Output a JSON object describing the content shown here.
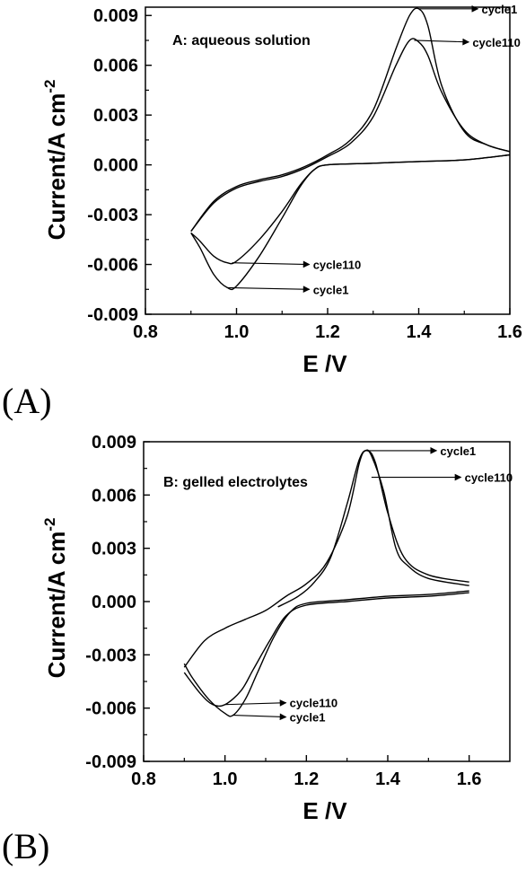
{
  "chart_data": [
    {
      "type": "line",
      "panel_label": "(A)",
      "annotation": "A:  aqueous solution",
      "xlabel": "E /V",
      "ylabel_main": "Current/A cm",
      "ylabel_sup": "-2",
      "xlim": [
        0.8,
        1.6
      ],
      "ylim": [
        -0.009,
        0.0095
      ],
      "xticks": [
        0.8,
        1.0,
        1.2,
        1.4,
        1.6
      ],
      "xtick_labels": [
        "0.8",
        "1.0",
        "1.2",
        "1.4",
        "1.6"
      ],
      "yticks": [
        -0.009,
        -0.006,
        -0.003,
        0.0,
        0.003,
        0.006,
        0.009
      ],
      "ytick_labels": [
        "-0.009",
        "-0.006",
        "-0.003",
        "0.000",
        "0.003",
        "0.006",
        "0.009"
      ],
      "series": [
        {
          "name": "cycle1",
          "forward": [
            [
              0.9,
              -0.004
            ],
            [
              0.95,
              -0.0022
            ],
            [
              1.0,
              -0.0013
            ],
            [
              1.05,
              -0.0009
            ],
            [
              1.1,
              -0.0006
            ],
            [
              1.15,
              -0.0001
            ],
            [
              1.2,
              0.0006
            ],
            [
              1.25,
              0.0015
            ],
            [
              1.3,
              0.0033
            ],
            [
              1.35,
              0.007
            ],
            [
              1.38,
              0.009
            ],
            [
              1.4,
              0.0094
            ],
            [
              1.42,
              0.0084
            ],
            [
              1.45,
              0.0048
            ],
            [
              1.5,
              0.002
            ],
            [
              1.55,
              0.0012
            ],
            [
              1.6,
              0.0008
            ]
          ],
          "reverse": [
            [
              1.6,
              0.0006
            ],
            [
              1.5,
              0.0003
            ],
            [
              1.4,
              0.0002
            ],
            [
              1.3,
              0.0001
            ],
            [
              1.2,
              0.0
            ],
            [
              1.17,
              -0.0003
            ],
            [
              1.14,
              -0.0013
            ],
            [
              1.1,
              -0.0032
            ],
            [
              1.05,
              -0.0055
            ],
            [
              1.0,
              -0.0073
            ],
            [
              0.98,
              -0.0074
            ],
            [
              0.95,
              -0.0066
            ],
            [
              0.92,
              -0.005
            ],
            [
              0.9,
              -0.0041
            ]
          ]
        },
        {
          "name": "cycle110",
          "forward": [
            [
              0.9,
              -0.004
            ],
            [
              0.95,
              -0.0023
            ],
            [
              1.0,
              -0.0014
            ],
            [
              1.05,
              -0.001
            ],
            [
              1.1,
              -0.0007
            ],
            [
              1.15,
              -0.0002
            ],
            [
              1.2,
              0.0005
            ],
            [
              1.25,
              0.0013
            ],
            [
              1.3,
              0.0029
            ],
            [
              1.35,
              0.006
            ],
            [
              1.38,
              0.0075
            ],
            [
              1.4,
              0.0074
            ],
            [
              1.42,
              0.0066
            ],
            [
              1.45,
              0.0044
            ],
            [
              1.5,
              0.0021
            ],
            [
              1.55,
              0.0012
            ],
            [
              1.6,
              0.0008
            ]
          ],
          "reverse": [
            [
              1.6,
              0.0006
            ],
            [
              1.5,
              0.0003
            ],
            [
              1.4,
              0.0002
            ],
            [
              1.3,
              0.0001
            ],
            [
              1.2,
              0.0
            ],
            [
              1.17,
              -0.0003
            ],
            [
              1.14,
              -0.0012
            ],
            [
              1.1,
              -0.0028
            ],
            [
              1.05,
              -0.0045
            ],
            [
              1.0,
              -0.0058
            ],
            [
              0.98,
              -0.0059
            ],
            [
              0.95,
              -0.0055
            ],
            [
              0.92,
              -0.0046
            ],
            [
              0.9,
              -0.0041
            ]
          ]
        }
      ],
      "labels": [
        {
          "text": "cycle1",
          "at": [
            1.4,
            0.0094
          ],
          "to": [
            1.53,
            0.0094
          ]
        },
        {
          "text": "cycle110",
          "at": [
            1.39,
            0.0075
          ],
          "to": [
            1.51,
            0.0074
          ]
        },
        {
          "text": "cycle110",
          "at": [
            0.99,
            -0.0059
          ],
          "to": [
            1.16,
            -0.006
          ]
        },
        {
          "text": "cycle1",
          "at": [
            0.98,
            -0.0074
          ],
          "to": [
            1.16,
            -0.0075
          ]
        }
      ]
    },
    {
      "type": "line",
      "panel_label": "(B)",
      "annotation": "B: gelled electrolytes",
      "xlabel": "E /V",
      "ylabel_main": "Current/A cm",
      "ylabel_sup": "-2",
      "xlim": [
        0.8,
        1.7
      ],
      "ylim": [
        -0.009,
        0.009
      ],
      "xticks": [
        0.8,
        1.0,
        1.2,
        1.4,
        1.6
      ],
      "xtick_labels": [
        "0.8",
        "1.0",
        "1.2",
        "1.4",
        "1.6"
      ],
      "yticks": [
        -0.009,
        -0.006,
        -0.003,
        0.0,
        0.003,
        0.006,
        0.009
      ],
      "ytick_labels": [
        "-0.009",
        "-0.006",
        "-0.003",
        "0.000",
        "0.003",
        "0.006",
        "0.009"
      ],
      "series": [
        {
          "name": "cycle1",
          "forward": [
            [
              1.13,
              -0.0003
            ],
            [
              1.18,
              0.0003
            ],
            [
              1.22,
              0.0011
            ],
            [
              1.26,
              0.0025
            ],
            [
              1.3,
              0.0055
            ],
            [
              1.33,
              0.008
            ],
            [
              1.35,
              0.0085
            ],
            [
              1.37,
              0.0078
            ],
            [
              1.4,
              0.005
            ],
            [
              1.44,
              0.0025
            ],
            [
              1.5,
              0.0015
            ],
            [
              1.6,
              0.0011
            ]
          ],
          "reverse": [
            [
              1.6,
              0.0006
            ],
            [
              1.5,
              0.0004
            ],
            [
              1.4,
              0.0003
            ],
            [
              1.3,
              0.0001
            ],
            [
              1.2,
              -0.0001
            ],
            [
              1.16,
              -0.0006
            ],
            [
              1.12,
              -0.002
            ],
            [
              1.08,
              -0.004
            ],
            [
              1.05,
              -0.0055
            ],
            [
              1.02,
              -0.0064
            ],
            [
              1.0,
              -0.0063
            ],
            [
              0.96,
              -0.0055
            ],
            [
              0.92,
              -0.0043
            ],
            [
              0.9,
              -0.0035
            ]
          ]
        },
        {
          "name": "cycle110",
          "forward": [
            [
              0.9,
              -0.0037
            ],
            [
              0.95,
              -0.0022
            ],
            [
              1.0,
              -0.0015
            ],
            [
              1.05,
              -0.001
            ],
            [
              1.1,
              -0.0005
            ],
            [
              1.15,
              0.0003
            ],
            [
              1.2,
              0.001
            ],
            [
              1.25,
              0.0022
            ],
            [
              1.3,
              0.0048
            ],
            [
              1.33,
              0.0078
            ],
            [
              1.345,
              0.0085
            ],
            [
              1.36,
              0.0082
            ],
            [
              1.39,
              0.0062
            ],
            [
              1.42,
              0.003
            ],
            [
              1.45,
              0.002
            ],
            [
              1.5,
              0.0013
            ],
            [
              1.6,
              0.0009
            ]
          ],
          "reverse": [
            [
              1.6,
              0.0005
            ],
            [
              1.5,
              0.0003
            ],
            [
              1.4,
              0.0002
            ],
            [
              1.3,
              0.0
            ],
            [
              1.2,
              -0.0002
            ],
            [
              1.15,
              -0.0008
            ],
            [
              1.11,
              -0.0022
            ],
            [
              1.07,
              -0.0038
            ],
            [
              1.04,
              -0.005
            ],
            [
              1.0,
              -0.0058
            ],
            [
              0.97,
              -0.0058
            ],
            [
              0.94,
              -0.0052
            ],
            [
              0.9,
              -0.004
            ]
          ]
        }
      ],
      "labels": [
        {
          "text": "cycle1",
          "at": [
            1.35,
            0.0085
          ],
          "to": [
            1.52,
            0.0085
          ]
        },
        {
          "text": "cycle110",
          "at": [
            1.36,
            0.007
          ],
          "to": [
            1.58,
            0.007
          ]
        },
        {
          "text": "cycle110",
          "at": [
            1.0,
            -0.0058
          ],
          "to": [
            1.15,
            -0.0057
          ]
        },
        {
          "text": "cycle1",
          "at": [
            1.02,
            -0.0064
          ],
          "to": [
            1.15,
            -0.0065
          ]
        }
      ]
    }
  ]
}
